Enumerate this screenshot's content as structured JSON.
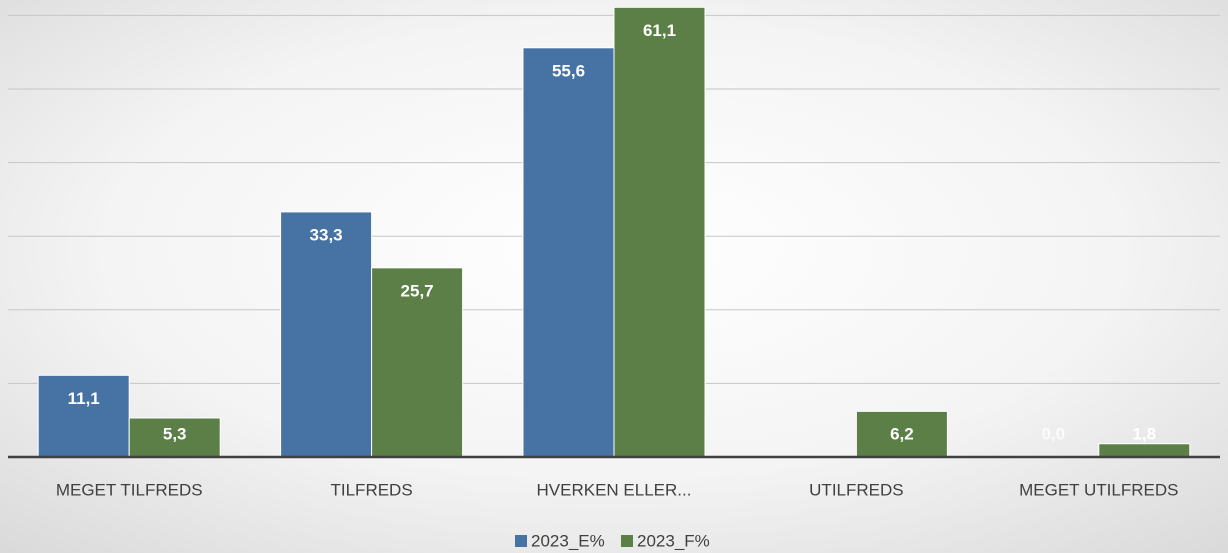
{
  "chart_data": {
    "type": "bar",
    "categories": [
      "MEGET TILFREDS",
      "TILFREDS",
      "HVERKEN ELLER...",
      "UTILFREDS",
      "MEGET UTILFREDS"
    ],
    "series": [
      {
        "name": "2023_E%",
        "color": "#4672a4",
        "values": [
          11.1,
          33.3,
          55.6,
          null,
          0.0
        ],
        "value_labels": [
          "11,1",
          "33,3",
          "55,6",
          null,
          "0,0"
        ]
      },
      {
        "name": "2023_F%",
        "color": "#5b7f47",
        "values": [
          5.3,
          25.7,
          61.1,
          6.2,
          1.8
        ],
        "value_labels": [
          "5,3",
          "25,7",
          "61,1",
          "6,2",
          "1,8"
        ]
      }
    ],
    "ylim": [
      0,
      70
    ],
    "yticks": [
      0,
      10,
      20,
      30,
      40,
      50,
      60
    ],
    "grid": true,
    "legend": "bottom"
  }
}
